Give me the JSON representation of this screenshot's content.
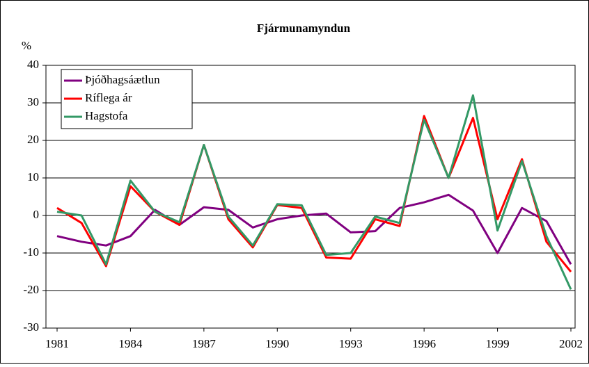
{
  "chart_data": {
    "type": "line",
    "title": "Fjármunamyndun",
    "y_label": "%",
    "x": [
      1981,
      1982,
      1983,
      1984,
      1985,
      1986,
      1987,
      1988,
      1989,
      1990,
      1991,
      1992,
      1993,
      1994,
      1995,
      1996,
      1997,
      1998,
      1999,
      2000,
      2001,
      2002
    ],
    "xlim": [
      1981,
      2002
    ],
    "xticks": [
      1981,
      1984,
      1987,
      1990,
      1993,
      1996,
      1999,
      2002
    ],
    "ylim": [
      -30,
      40
    ],
    "yticks": [
      -30,
      -20,
      -10,
      0,
      10,
      20,
      30,
      40
    ],
    "grid": true,
    "legend": "upper-left",
    "series": [
      {
        "name": "Þjóðhagsáætlun",
        "color": "#800080",
        "values": [
          -5.5,
          -7,
          -8,
          -5.5,
          1.5,
          -2.5,
          2.2,
          1.5,
          -3.2,
          -1,
          0,
          0.5,
          -4.5,
          -4.2,
          2,
          3.5,
          5.5,
          1.3,
          -10,
          2,
          -1.5,
          -13
        ]
      },
      {
        "name": "Ríflega ár",
        "color": "#ff0000",
        "values": [
          2,
          -2,
          -13.5,
          7.8,
          1,
          -2.5,
          18.8,
          -1,
          -8.5,
          2.8,
          2,
          -11.2,
          -11.5,
          -1,
          -2.8,
          26.5,
          10,
          26,
          -1,
          15,
          -7,
          -15
        ]
      },
      {
        "name": "Hagstofa",
        "color": "#339966",
        "values": [
          1,
          0,
          -13,
          9.3,
          1,
          -1.8,
          18.8,
          -0.3,
          -8,
          3,
          2.7,
          -10.5,
          -10,
          -0.3,
          -2,
          25.5,
          10,
          32,
          -4,
          14.5,
          -5.5,
          -19.7
        ]
      }
    ]
  }
}
